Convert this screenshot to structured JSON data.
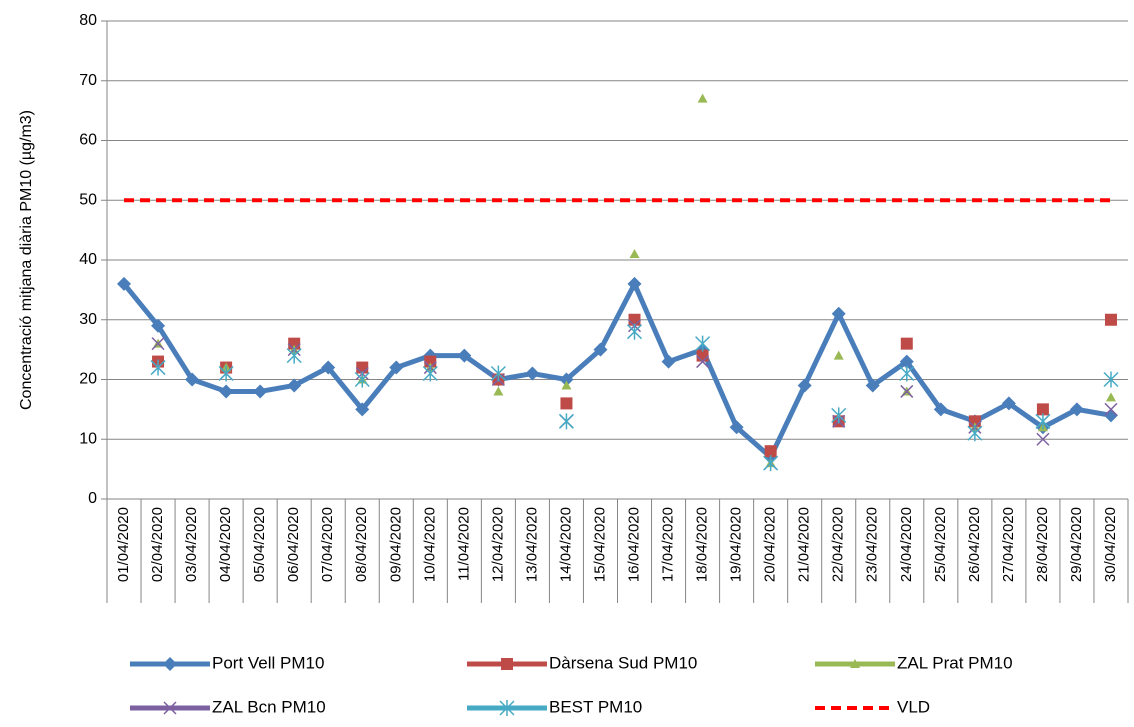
{
  "chart_data": {
    "type": "line",
    "y_label": "Concentració mitjana diària PM10 (µg/m3)",
    "categories": [
      "01/04/2020",
      "02/04/2020",
      "03/04/2020",
      "04/04/2020",
      "05/04/2020",
      "06/04/2020",
      "07/04/2020",
      "08/04/2020",
      "09/04/2020",
      "10/04/2020",
      "11/04/2020",
      "12/04/2020",
      "13/04/2020",
      "14/04/2020",
      "15/04/2020",
      "16/04/2020",
      "17/04/2020",
      "18/04/2020",
      "19/04/2020",
      "20/04/2020",
      "21/04/2020",
      "22/04/2020",
      "23/04/2020",
      "24/04/2020",
      "25/04/2020",
      "26/04/2020",
      "27/04/2020",
      "28/04/2020",
      "29/04/2020",
      "30/04/2020"
    ],
    "ylim": [
      0,
      80
    ],
    "yticks": [
      0,
      10,
      20,
      30,
      40,
      50,
      60,
      70,
      80
    ],
    "grid": true,
    "series": [
      {
        "name": "Port Vell PM10",
        "color": "#4a7ebb",
        "marker": "diamond",
        "line": "solid",
        "values": [
          36,
          29,
          20,
          18,
          18,
          19,
          22,
          15,
          22,
          24,
          24,
          20,
          21,
          20,
          25,
          36,
          23,
          25,
          12,
          7,
          19,
          31,
          19,
          23,
          15,
          13,
          16,
          12,
          15,
          14
        ]
      },
      {
        "name": "Dàrsena Sud PM10",
        "color": "#be4b48",
        "marker": "square",
        "line": "none",
        "values": [
          null,
          23,
          null,
          22,
          null,
          26,
          null,
          22,
          null,
          23,
          null,
          20,
          null,
          16,
          null,
          30,
          null,
          24,
          null,
          8,
          null,
          13,
          null,
          26,
          null,
          13,
          null,
          15,
          null,
          30
        ]
      },
      {
        "name": "ZAL Prat PM10",
        "color": "#98b954",
        "marker": "triangle",
        "line": "none",
        "values": [
          null,
          26,
          null,
          22,
          null,
          25,
          null,
          20,
          null,
          22,
          null,
          18,
          null,
          19,
          null,
          41,
          null,
          67,
          null,
          6,
          null,
          24,
          null,
          18,
          null,
          12,
          null,
          12,
          null,
          17
        ]
      },
      {
        "name": "ZAL Bcn PM10",
        "color": "#7d60a0",
        "marker": "x",
        "line": "none",
        "values": [
          null,
          26,
          null,
          21,
          null,
          25,
          null,
          21,
          null,
          22,
          null,
          20,
          null,
          13,
          null,
          29,
          null,
          23,
          null,
          6,
          null,
          13,
          null,
          18,
          null,
          12,
          null,
          10,
          null,
          15
        ]
      },
      {
        "name": "BEST PM10",
        "color": "#46aac5",
        "marker": "asterisk",
        "line": "none",
        "values": [
          null,
          22,
          null,
          21,
          null,
          24,
          null,
          20,
          null,
          21,
          null,
          21,
          null,
          13,
          null,
          28,
          null,
          26,
          null,
          6,
          null,
          14,
          null,
          21,
          null,
          11,
          null,
          13,
          null,
          20
        ]
      },
      {
        "name": "VLD",
        "color": "#ff0000",
        "marker": "none",
        "line": "dashed",
        "values": [
          50,
          50,
          50,
          50,
          50,
          50,
          50,
          50,
          50,
          50,
          50,
          50,
          50,
          50,
          50,
          50,
          50,
          50,
          50,
          50,
          50,
          50,
          50,
          50,
          50,
          50,
          50,
          50,
          50,
          50
        ]
      }
    ]
  }
}
